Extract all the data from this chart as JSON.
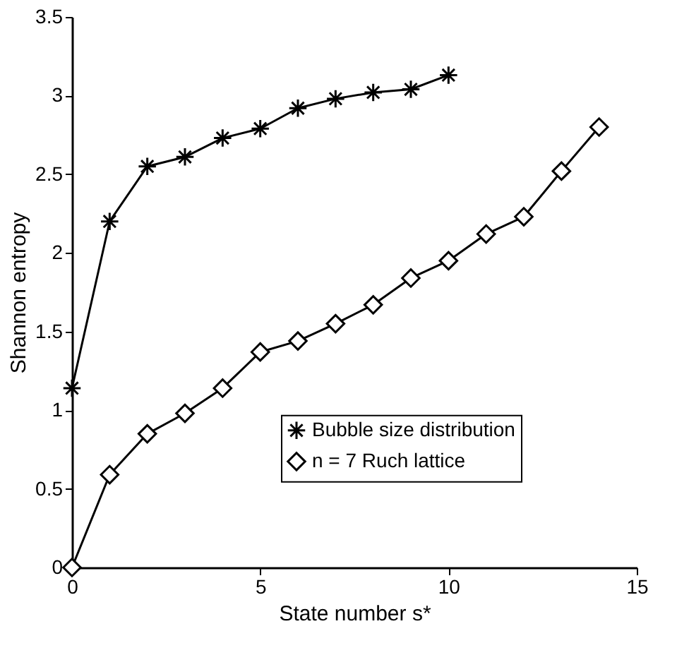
{
  "chart_data": {
    "type": "line",
    "xlabel": "State number s*",
    "ylabel": "Shannon entropy",
    "xlim": [
      0,
      15
    ],
    "xticks": [
      0,
      5,
      10,
      15
    ],
    "ylim": [
      0,
      3.5
    ],
    "yticks": [
      0,
      0.5,
      1,
      1.5,
      2,
      2.5,
      3,
      3.5
    ],
    "grid": false,
    "legend": "right",
    "line_style": "solid",
    "series": [
      {
        "name": "Bubble size distribution",
        "color": "#000000",
        "marker": "cross",
        "x": [
          0,
          1,
          2,
          3,
          4,
          5,
          6,
          7,
          8,
          9,
          10
        ],
        "values": [
          1.14,
          2.2,
          2.55,
          2.61,
          2.73,
          2.79,
          2.92,
          2.98,
          3.02,
          3.04,
          3.13
        ]
      },
      {
        "name": "n = 7 Ruch lattice",
        "color": "#000000",
        "marker": "diamond",
        "x": [
          0,
          1,
          2,
          3,
          4,
          5,
          6,
          7,
          8,
          9,
          10,
          11,
          12,
          13,
          14
        ],
        "values": [
          0,
          0.59,
          0.85,
          0.98,
          1.14,
          1.37,
          1.44,
          1.55,
          1.67,
          1.84,
          1.95,
          2.12,
          2.23,
          2.52,
          2.8
        ]
      }
    ]
  }
}
